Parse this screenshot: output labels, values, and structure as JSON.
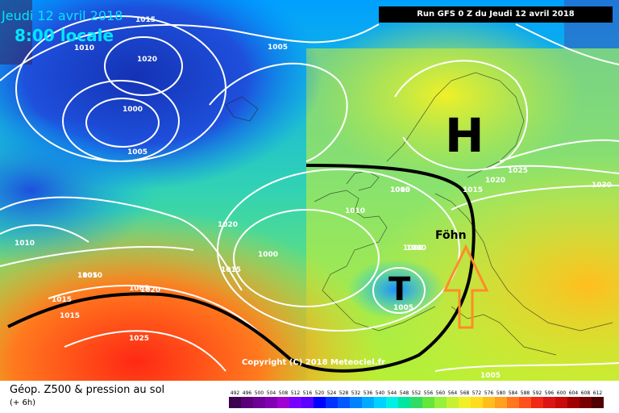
{
  "header": {
    "date_label": "Jeudi 12 avril 2018",
    "time_label": "8:00 locale",
    "run_label": "Run GFS 0 Z du Jeudi 12 avril 2018"
  },
  "map": {
    "isobar_labels": [
      "1015",
      "1010",
      "1020",
      "1005",
      "1000",
      "1005",
      "1005",
      "1010",
      "1020",
      "1010",
      "1015",
      "1010",
      "1005",
      "1000",
      "1000",
      "1005",
      "1015",
      "1020",
      "1025",
      "1030",
      "1025",
      "1015",
      "1010",
      "1020",
      "1005",
      "1000",
      "1015",
      "1005"
    ],
    "pressure_systems": [
      {
        "symbol": "H",
        "color": "#000000"
      },
      {
        "symbol": "T",
        "color": "#000000"
      }
    ],
    "annotation_label": "Föhn",
    "copyright": "Copyright (C) 2018 Meteociel.fr",
    "colors": {
      "low_height": "#1e3cc8",
      "mid_height": "#50dc50",
      "high_height": "#ff3c1e",
      "arrow": "#ff8c28",
      "front_line": "#000000"
    }
  },
  "footer": {
    "title": "Géop. Z500 & pression au sol",
    "subtitle": "(+ 6h)",
    "scale_values": [
      "492",
      "496",
      "500",
      "504",
      "508",
      "512",
      "516",
      "520",
      "524",
      "528",
      "532",
      "536",
      "540",
      "544",
      "548",
      "552",
      "556",
      "560",
      "564",
      "568",
      "572",
      "576",
      "580",
      "584",
      "588",
      "592",
      "596",
      "600",
      "604",
      "608",
      "612"
    ],
    "scale_colors": [
      "#3c0050",
      "#5a0078",
      "#6e0096",
      "#8200b4",
      "#a000d2",
      "#7800ff",
      "#5a00ff",
      "#0000ff",
      "#0032ff",
      "#005aff",
      "#0082ff",
      "#00aaff",
      "#00d2ff",
      "#00f0e6",
      "#00e6a0",
      "#32dc64",
      "#64e63c",
      "#96f03c",
      "#c8f032",
      "#f0f028",
      "#ffdc1e",
      "#ffbe1e",
      "#ffa01e",
      "#ff781e",
      "#ff501e",
      "#f02814",
      "#dc1414",
      "#c80a0a",
      "#a00000",
      "#780000",
      "#500000"
    ]
  }
}
